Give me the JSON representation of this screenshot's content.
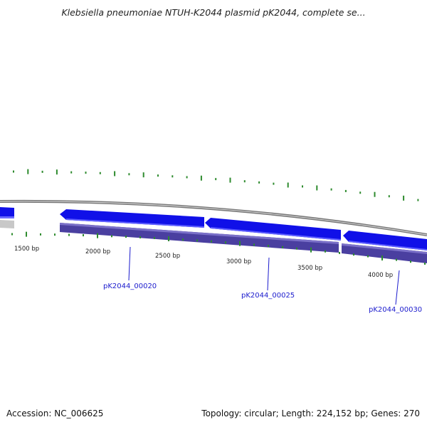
{
  "title": "Klebsiella pneumoniae NTUH-K2044 plasmid pK2044, complete se...",
  "footer": {
    "accession": "Accession: NC_006625",
    "summary": "Topology: circular; Length: 224,152 bp; Genes: 270"
  },
  "ruler_labels": [
    "1500 bp",
    "2000 bp",
    "2500 bp",
    "3000 bp",
    "3500 bp",
    "4000 bp"
  ],
  "genes": [
    "pK2044_00020",
    "pK2044_00025",
    "pK2044_00030"
  ],
  "colors": {
    "gene_arrow": "#1010e8",
    "cds_bar": "#4a3fa0",
    "backbone": "#8a8a8a",
    "gc_ticks": "#2e8b2e",
    "gene_label": "#1a1acd"
  }
}
